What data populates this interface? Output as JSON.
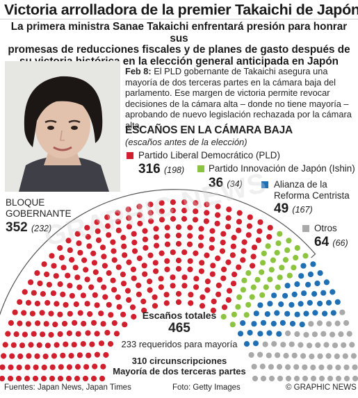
{
  "header": {
    "title": "Victoria arrolladora de la premier Takaichi de Japón",
    "subtitle_lines": [
      "La primera ministra Sanae Takaichi enfrentará presión para honrar sus",
      "promesas de reducciones fiscales y de planes de gasto después de",
      "su victoria histórica en la elección general anticipada en Japón"
    ]
  },
  "intro": {
    "date": "Feb 8:",
    "text": "El PLD gobernante de Takaichi asegura una mayoría de dos terceras partes en la cámara baja del parlamento. Ese margen de victoria permite revocar decisiones de la cámara alta – donde no tiene mayoría – aprobando de nuevo legislación rechazada por la cámara alta"
  },
  "chart_data": {
    "type": "parliament",
    "title": "ESCAÑOS EN LA CÁMARA BAJA",
    "subtitle": "(escaños antes de la elección)",
    "total_seats": 465,
    "series": [
      {
        "name": "Partido Liberal Democrático (PLD)",
        "seats": 316,
        "previous": 198,
        "color": "#d21f2e"
      },
      {
        "name": "Partido Innovación de Japón (Ishin)",
        "seats": 36,
        "previous": 34,
        "color": "#8cc43f"
      },
      {
        "name": "Alianza de la Reforma Centrista",
        "seats": 49,
        "previous": 167,
        "color": "#1f6fb5"
      },
      {
        "name": "Otros",
        "seats": 64,
        "previous": 66,
        "color": "#a9a9a9"
      }
    ],
    "bloc": {
      "label_lines": [
        "BLOQUE",
        "GOBERNANTE"
      ],
      "seats": 352,
      "previous": 232
    },
    "center": {
      "total_label": "Escaños totales",
      "total_value": "465",
      "majority": "233 requeridos para mayoría",
      "districts": "310 circunscripciones",
      "supermajority": "Mayoría de dos terceras partes"
    }
  },
  "legend_names": {
    "ldp_line1": "Partido Liberal Democrático (PLD)",
    "ishin_line1": "Partido Innovación de Japón (Ishin)",
    "cra_line1": "Alianza de la",
    "cra_line2": "Reforma Centrista",
    "otros": "Otros"
  },
  "footer": {
    "sources": "Fuentes: Japan News, Japan Times",
    "photo": "Foto: Getty Images",
    "credit": "© GRAPHIC NEWS"
  },
  "watermark": "GRAPHIC NEWS"
}
